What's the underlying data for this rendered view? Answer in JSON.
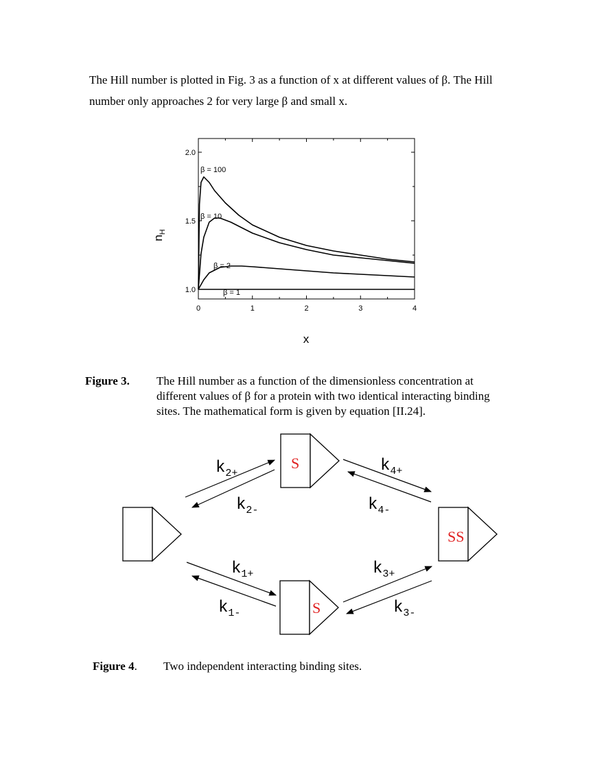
{
  "paragraph": "The Hill number is plotted in Fig. 3 as a function of x at different values of β. The Hill number only approaches 2 for very large β and small x.",
  "figure3": {
    "label": "Figure 3.",
    "caption": "The Hill number as a function of the dimensionless concentration at different values of β for a protein with two identical interacting binding sites. The mathematical form is given by equation [II.24]."
  },
  "figure4": {
    "label": "Figure 4",
    "label_suffix": ".",
    "caption": "Two independent interacting binding sites.",
    "rates": {
      "k2_plus": {
        "main": "k",
        "sub": "2+"
      },
      "k2_minus": {
        "main": "k",
        "sub": "2-"
      },
      "k4_plus": {
        "main": "k",
        "sub": "4+"
      },
      "k4_minus": {
        "main": "k",
        "sub": "4-"
      },
      "k1_plus": {
        "main": "k",
        "sub": "1+"
      },
      "k1_minus": {
        "main": "k",
        "sub": "1-"
      },
      "k3_plus": {
        "main": "k",
        "sub": "3+"
      },
      "k3_minus": {
        "main": "k",
        "sub": "3-"
      }
    },
    "missing_glyph": "",
    "substrate": "S"
  },
  "chart_data": {
    "type": "line",
    "xlabel": "x",
    "ylabel": "n",
    "ylabel_sub": "H",
    "xlim": [
      0,
      4
    ],
    "ylim": [
      0.93,
      2.1
    ],
    "xticks": [
      "0",
      "1",
      "2",
      "3",
      "4"
    ],
    "yticks": [
      "1.0",
      "1.5",
      "2.0"
    ],
    "series": [
      {
        "name": "β = 100",
        "beta": 100,
        "x": [
          0,
          0.02,
          0.05,
          0.1,
          0.2,
          0.3,
          0.5,
          0.75,
          1,
          1.5,
          2,
          2.5,
          3,
          3.5,
          4
        ],
        "y": [
          1.0,
          1.62,
          1.78,
          1.82,
          1.78,
          1.72,
          1.63,
          1.54,
          1.47,
          1.38,
          1.32,
          1.28,
          1.25,
          1.22,
          1.2
        ]
      },
      {
        "name": "β = 10",
        "beta": 10,
        "x": [
          0,
          0.05,
          0.1,
          0.2,
          0.3,
          0.4,
          0.6,
          0.8,
          1,
          1.5,
          2,
          2.5,
          3,
          3.5,
          4
        ],
        "y": [
          1.0,
          1.26,
          1.38,
          1.49,
          1.52,
          1.52,
          1.49,
          1.45,
          1.41,
          1.34,
          1.29,
          1.25,
          1.23,
          1.21,
          1.19
        ]
      },
      {
        "name": "β = 2",
        "beta": 2,
        "x": [
          0,
          0.1,
          0.2,
          0.4,
          0.6,
          0.8,
          1,
          1.5,
          2,
          2.5,
          3,
          3.5,
          4
        ],
        "y": [
          1.0,
          1.07,
          1.12,
          1.16,
          1.17,
          1.17,
          1.165,
          1.15,
          1.135,
          1.12,
          1.11,
          1.1,
          1.09
        ]
      },
      {
        "name": "β = 1",
        "beta": 1,
        "x": [
          0,
          4
        ],
        "y": [
          1.0,
          1.0
        ]
      }
    ]
  }
}
